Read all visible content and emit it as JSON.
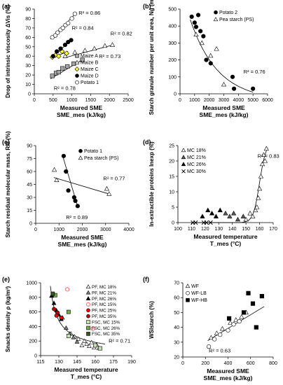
{
  "chart_data": [
    {
      "type": "scatter",
      "panel_label": "(a)",
      "ylabel": "Drop of intrinsic viscosity ΔVis (%)",
      "xlabel": "Measured SME",
      "xlabel2": "SME_mes (kJ/kg)",
      "xlim": [
        0,
        2500
      ],
      "xticks": [
        0,
        500,
        1000,
        1500,
        2000,
        2500
      ],
      "ylim": [
        0,
        90
      ],
      "yticks": [
        0,
        10,
        20,
        30,
        40,
        50,
        60,
        70,
        80,
        90
      ],
      "legend_position": "bottom-right",
      "annotations": [
        {
          "text": "R² = 0.86",
          "x": 1180,
          "y": 84
        },
        {
          "text": "R² = 0.84",
          "x": 1000,
          "y": 68
        },
        {
          "text": "R² = 0.82",
          "x": 2030,
          "y": 62
        },
        {
          "text": "R² = 0.73",
          "x": 1720,
          "y": 38
        },
        {
          "text": "R² = 0.78",
          "x": 520,
          "y": 4
        }
      ],
      "series": [
        {
          "name": "Maize A",
          "marker": "square",
          "color": "#a6a6a6",
          "x": [
            480,
            580,
            650,
            750,
            880,
            1050,
            1280
          ],
          "y": [
            19,
            22,
            23,
            27,
            29,
            32,
            36
          ],
          "fit": {
            "kind": "linear",
            "x": [
              430,
              1320
            ],
            "y": [
              16,
              37
            ]
          }
        },
        {
          "name": "Maize B",
          "marker": "triangle",
          "color": "#ffffff",
          "x": [
            820,
            1080,
            1350,
            1600,
            1880,
            2080
          ],
          "y": [
            40,
            44,
            46,
            48,
            51,
            52
          ],
          "fit": {
            "kind": "linear",
            "x": [
              780,
              2100
            ],
            "y": [
              38,
              52
            ]
          }
        },
        {
          "name": "Maize C",
          "marker": "diamond",
          "color": "#ffff33",
          "x": [
            480,
            560,
            650,
            740,
            860
          ],
          "y": [
            39,
            41,
            40,
            45,
            43
          ],
          "fit": {
            "kind": "linear",
            "x": [
              450,
              900
            ],
            "y": [
              38,
              45
            ]
          }
        },
        {
          "name": "Maize D",
          "marker": "circle",
          "color": "#000000",
          "x": [
            500,
            600,
            700,
            820,
            900,
            980
          ],
          "y": [
            40,
            45,
            48,
            52,
            55,
            57
          ],
          "fit": {
            "kind": "linear",
            "x": [
              460,
              1000
            ],
            "y": [
              38,
              58
            ]
          }
        },
        {
          "name": "Potato 1",
          "marker": "circle",
          "color": "#ffffff",
          "x": [
            480,
            560,
            620,
            700,
            760,
            830,
            900,
            1000,
            1080
          ],
          "y": [
            60,
            62,
            65,
            68,
            70,
            73,
            75,
            80,
            85
          ],
          "fit": {
            "kind": "linear",
            "x": [
              430,
              1120
            ],
            "y": [
              58,
              86
            ]
          }
        }
      ]
    },
    {
      "type": "scatter",
      "panel_label": "(b)",
      "ylabel": "Starch granule number per unit area, Ng (mm⁻²)",
      "xlabel": "Measured SME",
      "xlabel2": "SME_mes (kJ/kg)",
      "xlim": [
        0,
        6000
      ],
      "xticks": [
        0,
        1000,
        2000,
        3000,
        4000,
        5000,
        6000
      ],
      "ylim": [
        0,
        500
      ],
      "yticks": [
        0,
        100,
        200,
        300,
        400,
        500
      ],
      "legend_position": "top-right",
      "annotations": [
        {
          "text": "R² = 0.76",
          "x": 4350,
          "y": 120
        }
      ],
      "fit": {
        "kind": "exponential",
        "x0": 700,
        "x1": 5000
      },
      "series": [
        {
          "name": "Potato 2",
          "marker": "circle",
          "color": "#000000",
          "x": [
            800,
            1000,
            1100,
            1250,
            1400,
            1600,
            1800,
            2100,
            3600,
            3700,
            5000
          ],
          "y": [
            455,
            420,
            395,
            465,
            370,
            340,
            200,
            180,
            100,
            30,
            30
          ]
        },
        {
          "name": "Pea starch (PS)",
          "marker": "triangle",
          "color": "#ffffff",
          "x": [
            1100,
            1500,
            2100,
            2500,
            3000
          ],
          "y": [
            350,
            300,
            225,
            265,
            55
          ]
        }
      ]
    },
    {
      "type": "scatter",
      "panel_label": "(c)",
      "ylabel": "Starch residual molecular mass, RM (%)",
      "xlabel": "Measured SME",
      "xlabel2": "SME_mes (kJ/kg)",
      "xlim": [
        0,
        4000
      ],
      "xticks": [
        0,
        1000,
        2000,
        3000,
        4000
      ],
      "ylim": [
        0,
        90
      ],
      "yticks": [
        0,
        15,
        30,
        45,
        60,
        75,
        90
      ],
      "legend_position": "top-right",
      "annotations": [
        {
          "text": "R² = 0.77",
          "x": 2900,
          "y": 50
        },
        {
          "text": "R² = 0.89",
          "x": 1300,
          "y": 5
        }
      ],
      "series": [
        {
          "name": "Potato 1",
          "marker": "circle",
          "color": "#000000",
          "x": [
            1200,
            1300,
            1400,
            1650,
            1700,
            1800
          ],
          "y": [
            78,
            60,
            38,
            30,
            26,
            20
          ],
          "fit": {
            "kind": "linear",
            "x": [
              1180,
              1820
            ],
            "y": [
              76,
              18
            ]
          }
        },
        {
          "name": "Pea starch (PS)",
          "marker": "triangle",
          "color": "#ffffff",
          "x": [
            800,
            900,
            3050,
            3150
          ],
          "y": [
            62,
            50,
            40,
            34
          ],
          "fit": {
            "kind": "linear",
            "x": [
              780,
              3150
            ],
            "y": [
              53,
              34
            ]
          }
        }
      ]
    },
    {
      "type": "scatter",
      "panel_label": "(d)",
      "ylabel": "In-extractible proteins Inexp (%)",
      "xlabel": "Measured temperature",
      "xlabel2": "T_mes (°C)",
      "xlim": [
        100,
        170
      ],
      "xticks": [
        100,
        110,
        120,
        130,
        140,
        150,
        160,
        170
      ],
      "ylim": [
        0,
        25
      ],
      "yticks": [
        0,
        5,
        10,
        15,
        20,
        25
      ],
      "legend_position": "top-left",
      "annotations": [
        {
          "text": "R² = 0.83",
          "x": 158.5,
          "y": 21
        }
      ],
      "fit": {
        "kind": "logistic",
        "x0": 112,
        "x1": 166
      },
      "series": [
        {
          "name": "MC 18%",
          "marker": "triangle",
          "color": "#ffffff",
          "x": [
            150,
            153,
            155,
            157,
            158,
            159,
            160,
            161,
            162,
            163,
            164,
            165
          ],
          "y": [
            1,
            3,
            2,
            4,
            5,
            8,
            11,
            15,
            19,
            22,
            20,
            24
          ]
        },
        {
          "name": "MC 21%",
          "marker": "triangle",
          "color": "#595959",
          "x": [
            135,
            138,
            141,
            144,
            148
          ],
          "y": [
            3,
            2,
            3,
            1,
            2
          ]
        },
        {
          "name": "MC 26%",
          "marker": "triangle",
          "color": "#000000",
          "x": [
            118,
            122,
            125,
            128,
            131
          ],
          "y": [
            2,
            4,
            3,
            2,
            4
          ]
        },
        {
          "name": "MC 30%",
          "marker": "x",
          "color": "#000000",
          "x": [
            111,
            113,
            119,
            121,
            124
          ],
          "y": [
            0,
            0,
            0,
            0,
            0
          ]
        }
      ]
    },
    {
      "type": "scatter",
      "panel_label": "(e)",
      "ylabel": "Snacks density ρ (kg/m³)",
      "xlabel": "Measured temperature",
      "xlabel2": "T_mes (°C)",
      "xlim": [
        115,
        190
      ],
      "xticks": [
        115,
        130,
        145,
        160,
        175,
        190
      ],
      "ylim": [
        0,
        1000
      ],
      "yticks": [
        0,
        200,
        400,
        600,
        800,
        1000
      ],
      "legend_position": "top-right",
      "annotations": [
        {
          "text": "R² = 0.71",
          "x": 171,
          "y": 180
        }
      ],
      "fit": {
        "kind": "power",
        "x0": 123,
        "x1": 168
      },
      "series": [
        {
          "name": "PF, MC 18%",
          "marker": "triangle",
          "color": "#ffffff",
          "x": [
            140,
            143,
            146,
            149,
            151,
            153,
            155,
            157,
            159,
            161,
            163
          ],
          "y": [
            300,
            260,
            230,
            140,
            200,
            160,
            130,
            180,
            110,
            150,
            100
          ]
        },
        {
          "name": "PF, MC 21%",
          "marker": "triangle",
          "color": "#7f7f7f",
          "x": [
            133,
            136,
            139,
            142,
            145
          ],
          "y": [
            520,
            380,
            300,
            250,
            190
          ]
        },
        {
          "name": "PF, MC 26%",
          "marker": "triangle",
          "color": "#000000",
          "x": [
            124,
            126,
            128,
            130,
            132
          ],
          "y": [
            820,
            720,
            620,
            560,
            500
          ]
        },
        {
          "name": "PF, MC 15%",
          "marker": "circle",
          "color": "#ff6666",
          "x": [
            137,
            158
          ],
          "y": [
            910,
            370
          ]
        },
        {
          "name": "PF, MC 25%",
          "marker": "circle",
          "color": "#ff0000",
          "x": [
            128,
            132
          ],
          "y": [
            550,
            520
          ]
        },
        {
          "name": "PF, MC 35%",
          "marker": "circle",
          "color": "#c00000",
          "x": [
            126,
            129
          ],
          "y": [
            640,
            590
          ]
        },
        {
          "name": "FSC, MC 15%",
          "marker": "square",
          "color": "#c6e0b4",
          "x": [
            138,
            160,
            164
          ],
          "y": [
            270,
            140,
            100
          ]
        },
        {
          "name": "FSC, MC 26%",
          "marker": "square",
          "color": "#70ad47",
          "x": [
            127,
            138
          ],
          "y": [
            830,
            600
          ]
        },
        {
          "name": "FSC, MC 35%",
          "marker": "square",
          "color": "#375623",
          "x": [
            125
          ],
          "y": [
            850
          ]
        }
      ]
    },
    {
      "type": "scatter",
      "panel_label": "(f)",
      "ylabel": "WSIstarch (%)",
      "xlabel": "Measured SME",
      "xlabel2": "SME_mes (kJ/kg)",
      "xlim": [
        0,
        800
      ],
      "xticks": [
        0,
        200,
        400,
        600,
        800
      ],
      "ylim": [
        20,
        70
      ],
      "yticks": [
        20,
        30,
        40,
        50,
        60,
        70
      ],
      "legend_position": "top-left",
      "annotations": [
        {
          "text": "R² = 0.63",
          "x": 230,
          "y": 23
        }
      ],
      "fit": {
        "kind": "linear",
        "x": [
          220,
          720
        ],
        "y": [
          31,
          54
        ]
      },
      "series": [
        {
          "name": "WF",
          "marker": "triangle",
          "color": "#ffffff",
          "x": [
            250,
            300,
            350,
            420,
            470,
            520,
            560
          ],
          "y": [
            33,
            36,
            39,
            43,
            45,
            47,
            50
          ]
        },
        {
          "name": "WF-LB",
          "marker": "circle",
          "color": "#ffffff",
          "x": [
            230,
            280,
            330,
            400,
            450,
            500
          ],
          "y": [
            27,
            32,
            35,
            38,
            42,
            44
          ]
        },
        {
          "name": "WF-HB",
          "marker": "square",
          "color": "#000000",
          "x": [
            410,
            540,
            580,
            620,
            650,
            700
          ],
          "y": [
            46,
            50,
            63,
            56,
            40,
            61
          ]
        }
      ]
    }
  ]
}
